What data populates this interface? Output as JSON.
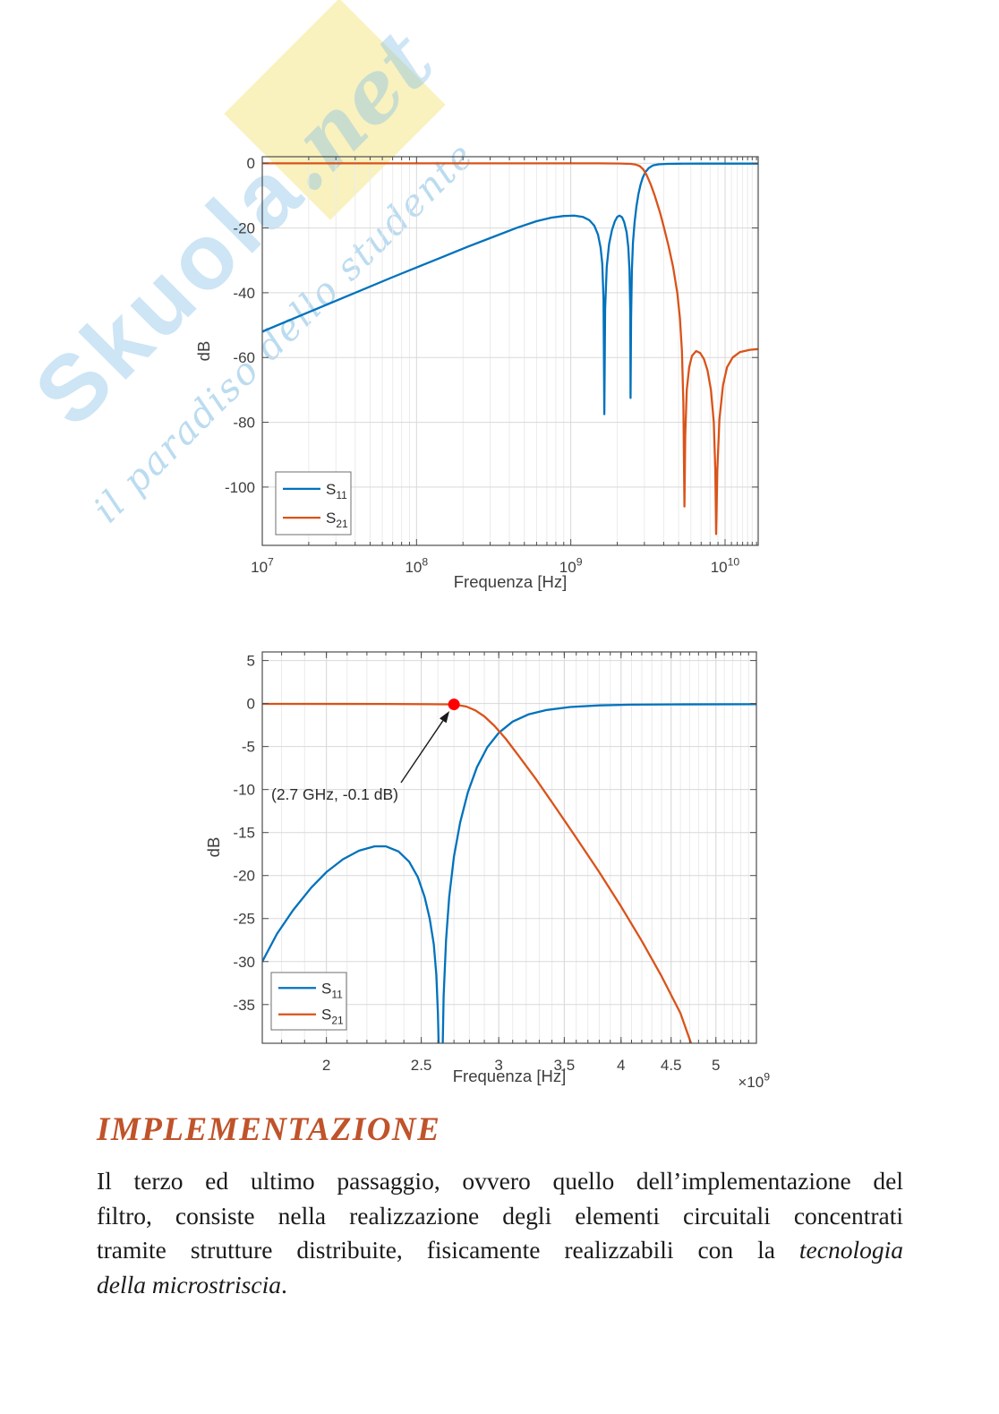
{
  "watermark": {
    "brand": "Skuola",
    "brand_suffix": ".net",
    "slogan": "il paradiso dello studente",
    "text_color": "rgba(130,191,230,0.40)",
    "slogan_color": "rgba(120,185,226,0.50)",
    "badge_color": "rgba(248,240,180,0.85)"
  },
  "heading": {
    "text": "IMPLEMENTAZIONE",
    "color": "#c0532a"
  },
  "paragraph": {
    "lines": [
      [
        {
          "t": "Il terzo ed ultimo passaggio, ovvero quello dell’implementazione del"
        }
      ],
      [
        {
          "t": "filtro, consiste nella realizzazione degli elementi circuitali concentrati"
        }
      ],
      [
        {
          "t": "tramite strutture distribuite, fisicamente realizzabili con la "
        },
        {
          "t": "tecnologia",
          "i": true
        }
      ],
      [
        {
          "t": "della microstriscia",
          "i": true
        },
        {
          "t": "."
        }
      ]
    ]
  },
  "chart_colors": {
    "s11": "#0072BD",
    "s21": "#D95319",
    "marker": "#ff0000",
    "frame": "#4d4d4d",
    "grid_minor": "#ebebeb",
    "grid_major": "#d9d9d9",
    "text": "#3d3d3d"
  },
  "chart_data": [
    {
      "id": "broadband-s-parameters",
      "type": "line",
      "x_scale": "log",
      "xlabel": "Frequenza [Hz]",
      "ylabel": "dB",
      "xlim": [
        10000000.0,
        16400000000.0
      ],
      "ylim": [
        -118,
        2
      ],
      "grid": true,
      "x_ticks": [
        {
          "v": 10000000.0,
          "label": "10^7"
        },
        {
          "v": 100000000.0,
          "label": "10^8"
        },
        {
          "v": 1000000000.0,
          "label": "10^9"
        },
        {
          "v": 10000000000.0,
          "label": "10^10"
        }
      ],
      "y_ticks": [
        {
          "v": 0,
          "label": "0"
        },
        {
          "v": -20,
          "label": "-20"
        },
        {
          "v": -40,
          "label": "-40"
        },
        {
          "v": -60,
          "label": "-60"
        },
        {
          "v": -80,
          "label": "-80"
        },
        {
          "v": -100,
          "label": "-100"
        }
      ],
      "legend": {
        "position": "southwest",
        "entries": [
          {
            "label": "S_11",
            "color": "#0072BD"
          },
          {
            "label": "S_21",
            "color": "#D95319"
          }
        ]
      },
      "series": [
        {
          "name": "S_11",
          "color": "#0072BD",
          "points": [
            [
              10000000.0,
              -52
            ],
            [
              20000000.0,
              -46
            ],
            [
              40000000.0,
              -40
            ],
            [
              70000000.0,
              -35.2
            ],
            [
              100000000.0,
              -32.2
            ],
            [
              150000000.0,
              -28.8
            ],
            [
              220000000.0,
              -25.6
            ],
            [
              320000000.0,
              -22.6
            ],
            [
              450000000.0,
              -19.9
            ],
            [
              600000000.0,
              -17.9
            ],
            [
              750000000.0,
              -16.8
            ],
            [
              900000000.0,
              -16.3
            ],
            [
              1050000000.0,
              -16.2
            ],
            [
              1200000000.0,
              -16.6
            ],
            [
              1320000000.0,
              -17.6
            ],
            [
              1420000000.0,
              -19.3
            ],
            [
              1500000000.0,
              -22
            ],
            [
              1560000000.0,
              -26
            ],
            [
              1600000000.0,
              -31
            ],
            [
              1630000000.0,
              -42
            ],
            [
              1650000000.0,
              -77.5
            ],
            [
              1670000000.0,
              -45
            ],
            [
              1710000000.0,
              -32
            ],
            [
              1770000000.0,
              -25
            ],
            [
              1850000000.0,
              -20.6
            ],
            [
              1930000000.0,
              -17.9
            ],
            [
              2000000000.0,
              -16.6
            ],
            [
              2070000000.0,
              -16.2
            ],
            [
              2150000000.0,
              -16.7
            ],
            [
              2220000000.0,
              -18.2
            ],
            [
              2300000000.0,
              -21.3
            ],
            [
              2360000000.0,
              -26
            ],
            [
              2400000000.0,
              -33
            ],
            [
              2430000000.0,
              -46
            ],
            [
              2440000000.0,
              -72.5
            ],
            [
              2460000000.0,
              -48
            ],
            [
              2490000000.0,
              -33
            ],
            [
              2530000000.0,
              -24.5
            ],
            [
              2590000000.0,
              -18.3
            ],
            [
              2660000000.0,
              -13.5
            ],
            [
              2740000000.0,
              -9.7
            ],
            [
              2830000000.0,
              -6.7
            ],
            [
              2930000000.0,
              -4.4
            ],
            [
              3050000000.0,
              -2.7
            ],
            [
              3200000000.0,
              -1.5
            ],
            [
              3400000000.0,
              -0.7
            ],
            [
              3700000000.0,
              -0.35
            ],
            [
              4200000000.0,
              -0.2
            ],
            [
              5000000000.0,
              -0.15
            ],
            [
              7000000000.0,
              -0.12
            ],
            [
              16400000000.0,
              -0.12
            ]
          ]
        },
        {
          "name": "S_21",
          "color": "#D95319",
          "points": [
            [
              10000000.0,
              -0.05
            ],
            [
              1500000000.0,
              -0.05
            ],
            [
              2100000000.0,
              -0.1
            ],
            [
              2450000000.0,
              -0.2
            ],
            [
              2650000000.0,
              -0.45
            ],
            [
              2800000000.0,
              -0.9
            ],
            [
              2950000000.0,
              -1.9
            ],
            [
              3100000000.0,
              -3.6
            ],
            [
              3300000000.0,
              -6.6
            ],
            [
              3500000000.0,
              -10
            ],
            [
              3800000000.0,
              -15.5
            ],
            [
              4000000000.0,
              -19.5
            ],
            [
              4300000000.0,
              -25.5
            ],
            [
              4600000000.0,
              -32
            ],
            [
              4900000000.0,
              -40
            ],
            [
              5100000000.0,
              -48
            ],
            [
              5250000000.0,
              -58
            ],
            [
              5370000000.0,
              -74
            ],
            [
              5450000000.0,
              -106
            ],
            [
              5520000000.0,
              -84
            ],
            [
              5650000000.0,
              -70
            ],
            [
              5850000000.0,
              -63
            ],
            [
              6100000000.0,
              -59.5
            ],
            [
              6500000000.0,
              -58
            ],
            [
              6900000000.0,
              -58.6
            ],
            [
              7300000000.0,
              -60.5
            ],
            [
              7700000000.0,
              -64
            ],
            [
              8100000000.0,
              -70
            ],
            [
              8450000000.0,
              -80
            ],
            [
              8650000000.0,
              -95
            ],
            [
              8750000000.0,
              -114.5
            ],
            [
              8900000000.0,
              -95
            ],
            [
              9200000000.0,
              -79
            ],
            [
              9700000000.0,
              -68.5
            ],
            [
              10300000000.0,
              -63
            ],
            [
              11200000000.0,
              -60
            ],
            [
              12500000000.0,
              -58.3
            ],
            [
              14500000000.0,
              -57.6
            ],
            [
              16400000000.0,
              -57.4
            ]
          ]
        }
      ]
    },
    {
      "id": "passband-detail",
      "type": "line",
      "x_scale": "log",
      "xlabel": "Frequenza [Hz]",
      "ylabel": "dB",
      "x_tick_suffix": "×10^9",
      "xlim": [
        1720000000.0,
        5500000000.0
      ],
      "ylim": [
        -39.5,
        6
      ],
      "grid": true,
      "minor_x_step": 100000000.0,
      "x_ticks": [
        {
          "v": 2000000000.0,
          "label": "2"
        },
        {
          "v": 2500000000.0,
          "label": "2.5"
        },
        {
          "v": 3000000000.0,
          "label": "3"
        },
        {
          "v": 3500000000.0,
          "label": "3.5"
        },
        {
          "v": 4000000000.0,
          "label": "4"
        },
        {
          "v": 4500000000.0,
          "label": "4.5"
        },
        {
          "v": 5000000000.0,
          "label": "5"
        }
      ],
      "y_ticks": [
        {
          "v": 5,
          "label": "5"
        },
        {
          "v": 0,
          "label": "0"
        },
        {
          "v": -5,
          "label": "-5"
        },
        {
          "v": -10,
          "label": "-10"
        },
        {
          "v": -15,
          "label": "-15"
        },
        {
          "v": -20,
          "label": "-20"
        },
        {
          "v": -25,
          "label": "-25"
        },
        {
          "v": -30,
          "label": "-30"
        },
        {
          "v": -35,
          "label": "-35"
        }
      ],
      "annotation": {
        "text": "(2.7 GHz, -0.1 dB)",
        "point": [
          2700000000.0,
          -0.1
        ],
        "marker_color": "#ff0000"
      },
      "legend": {
        "position": "southwest",
        "entries": [
          {
            "label": "S_11",
            "color": "#0072BD"
          },
          {
            "label": "S_21",
            "color": "#D95319"
          }
        ]
      },
      "series": [
        {
          "name": "S_11",
          "color": "#0072BD",
          "points": [
            [
              1720000000.0,
              -30
            ],
            [
              1780000000.0,
              -26.8
            ],
            [
              1850000000.0,
              -24
            ],
            [
              1930000000.0,
              -21.4
            ],
            [
              2000000000.0,
              -19.6
            ],
            [
              2080000000.0,
              -18.1
            ],
            [
              2160000000.0,
              -17.1
            ],
            [
              2240000000.0,
              -16.6
            ],
            [
              2300000000.0,
              -16.6
            ],
            [
              2370000000.0,
              -17.2
            ],
            [
              2430000000.0,
              -18.4
            ],
            [
              2480000000.0,
              -20.2
            ],
            [
              2520000000.0,
              -22.5
            ],
            [
              2550000000.0,
              -25
            ],
            [
              2575000000.0,
              -28
            ],
            [
              2590000000.0,
              -31.5
            ],
            [
              2600000000.0,
              -36
            ],
            [
              2610000000.0,
              -44
            ],
            [
              2625000000.0,
              -44
            ],
            [
              2635000000.0,
              -34
            ],
            [
              2650000000.0,
              -27.5
            ],
            [
              2670000000.0,
              -22.5
            ],
            [
              2700000000.0,
              -17.8
            ],
            [
              2740000000.0,
              -13.8
            ],
            [
              2790000000.0,
              -10.3
            ],
            [
              2850000000.0,
              -7.4
            ],
            [
              2920000000.0,
              -5.1
            ],
            [
              3000000000.0,
              -3.4
            ],
            [
              3100000000.0,
              -2.1
            ],
            [
              3220000000.0,
              -1.25
            ],
            [
              3360000000.0,
              -0.75
            ],
            [
              3550000000.0,
              -0.4
            ],
            [
              3800000000.0,
              -0.22
            ],
            [
              4100000000.0,
              -0.13
            ],
            [
              4500000000.0,
              -0.1
            ],
            [
              5500000000.0,
              -0.08
            ]
          ]
        },
        {
          "name": "S_21",
          "color": "#D95319",
          "points": [
            [
              1720000000.0,
              -0.04
            ],
            [
              2300000000.0,
              -0.05
            ],
            [
              2550000000.0,
              -0.08
            ],
            [
              2700000000.0,
              -0.1
            ],
            [
              2780000000.0,
              -0.35
            ],
            [
              2840000000.0,
              -0.8
            ],
            [
              2900000000.0,
              -1.5
            ],
            [
              2970000000.0,
              -2.6
            ],
            [
              3050000000.0,
              -4.1
            ],
            [
              3150000000.0,
              -6.2
            ],
            [
              3280000000.0,
              -8.9
            ],
            [
              3420000000.0,
              -11.9
            ],
            [
              3600000000.0,
              -15.6
            ],
            [
              3800000000.0,
              -19.6
            ],
            [
              4000000000.0,
              -23.6
            ],
            [
              4200000000.0,
              -27.6
            ],
            [
              4400000000.0,
              -31.7
            ],
            [
              4600000000.0,
              -36
            ],
            [
              4750000000.0,
              -40.5
            ]
          ]
        }
      ]
    }
  ]
}
